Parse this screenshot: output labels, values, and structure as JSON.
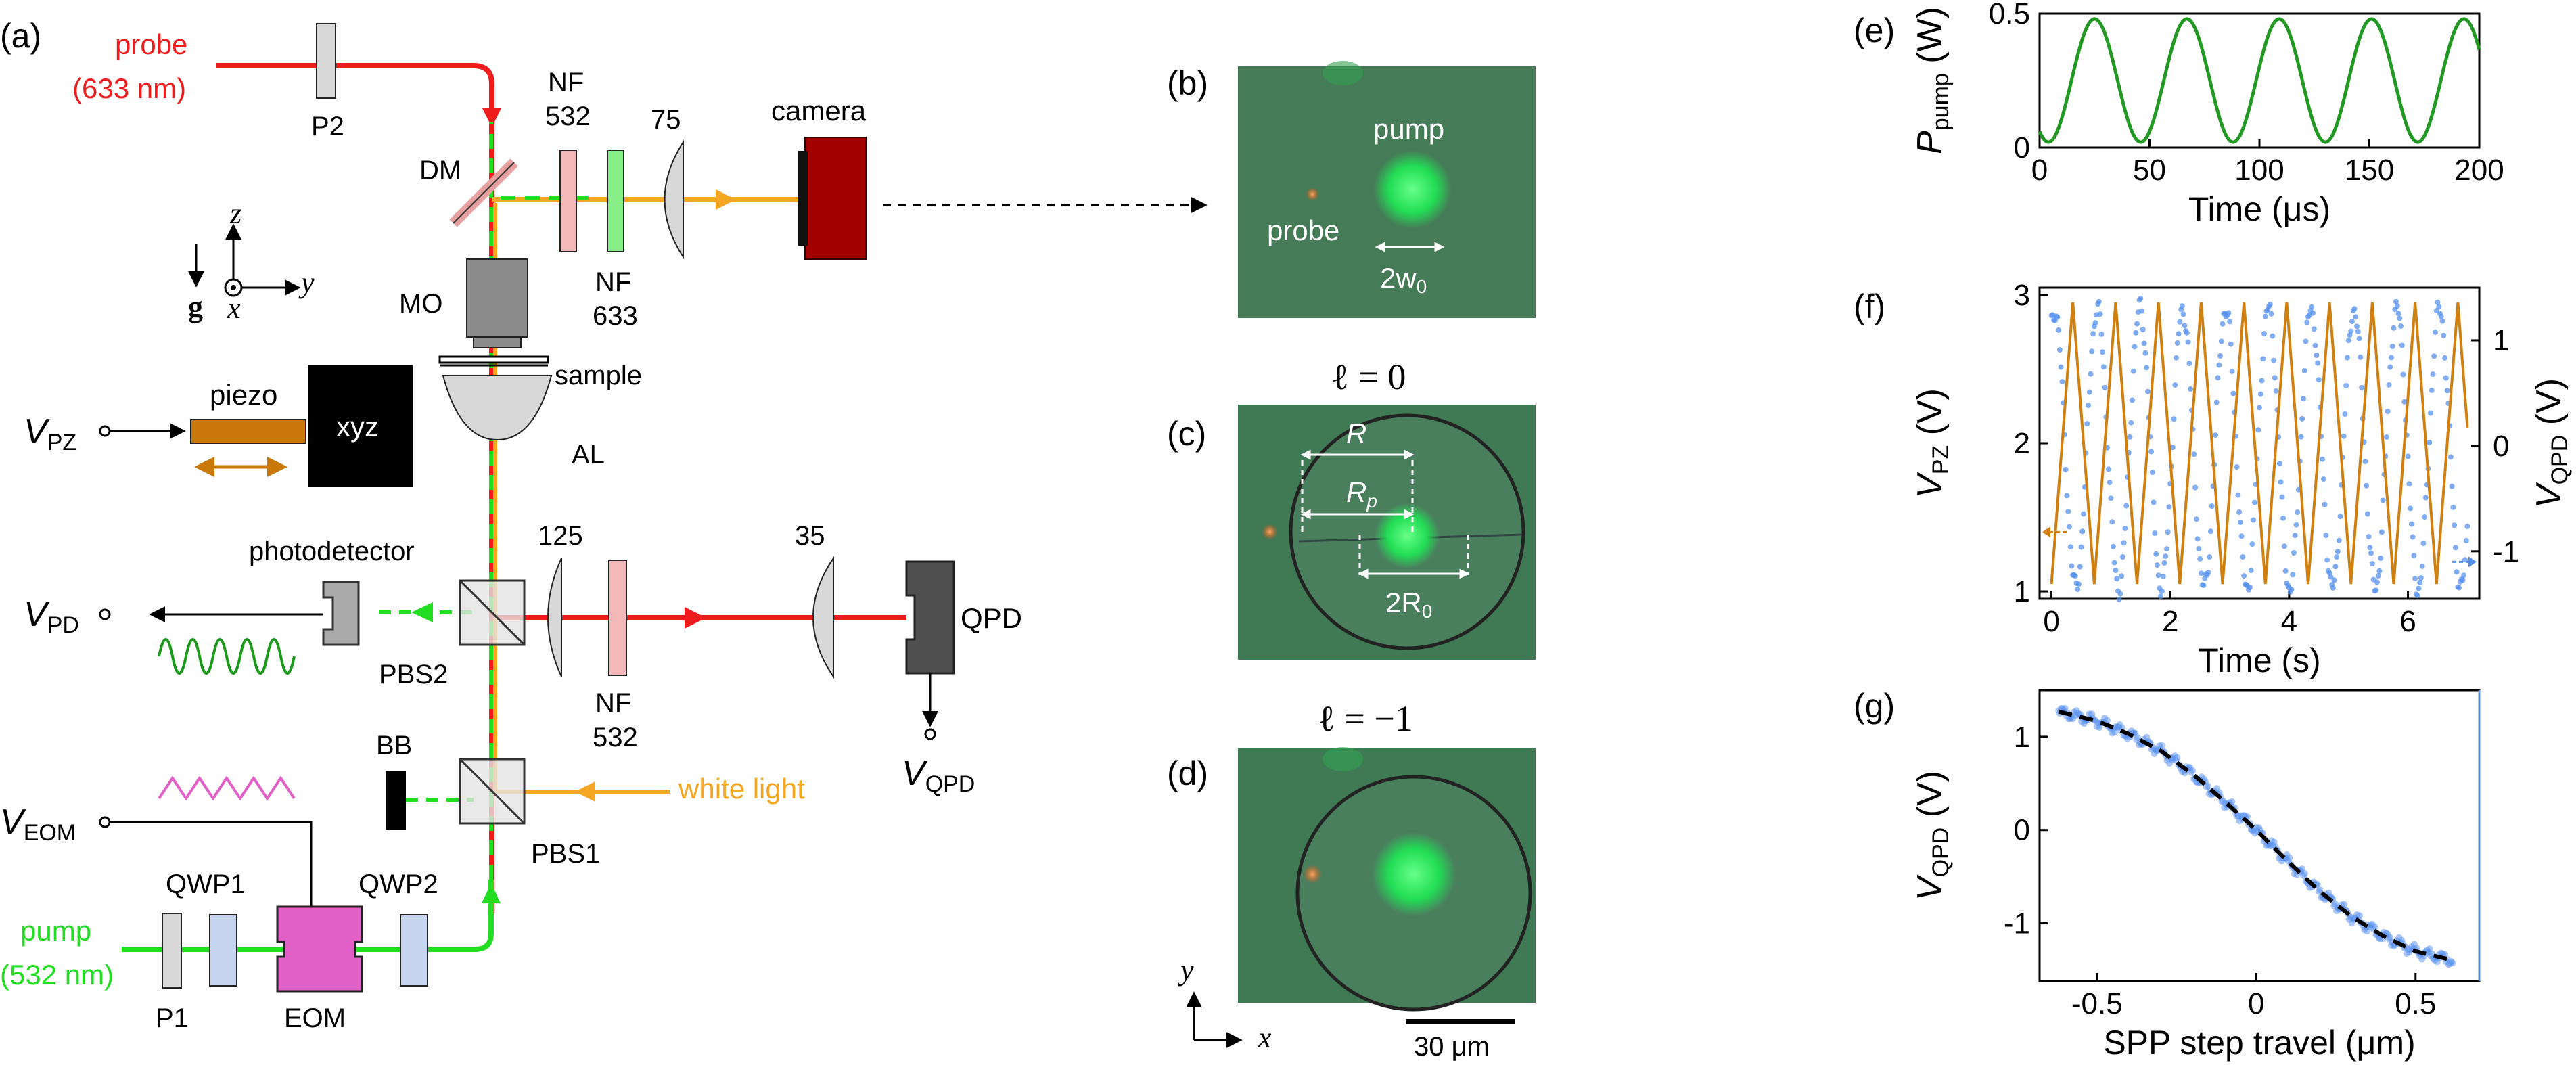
{
  "colors": {
    "probe_beam": "#ee1c1c",
    "pump_beam": "#22dd22",
    "white_light_beam": "#f5a623",
    "piezo": "#c8790a",
    "eom": "#e060c8",
    "eom_signal": "#e060c8",
    "pd_signal": "#1c9a1c",
    "camera": "#a30000",
    "notch_532": "#f5b8b8",
    "notch_633": "#88ee88",
    "waveplate": "#c6d4f0",
    "optic_gray": "#d8d8d8",
    "objective": "#8c8c8c",
    "qpd": "#505050",
    "micrograph_bg": "#3f7a55",
    "series_ppump": "#229922",
    "series_vpz": "#d08010",
    "series_vqpd": "#5590ee",
    "fit_line": "#000000"
  },
  "panel_labels": {
    "a": "(a)",
    "b": "(b)",
    "c": "(c)",
    "d": "(d)",
    "e": "(e)",
    "f": "(f)",
    "g": "(g)"
  },
  "setup": {
    "probe_label": "probe",
    "probe_wavelength": "(633 nm)",
    "pump_label": "pump",
    "pump_wavelength": "(532 nm)",
    "p2": "P2",
    "p1": "P1",
    "dm": "DM",
    "nf_top": "NF",
    "nf_top_value": "532",
    "nf_mid": "NF",
    "nf_mid_value": "633",
    "lens_75": "75",
    "camera": "camera",
    "mo": "MO",
    "sample": "sample",
    "al": "AL",
    "piezo": "piezo",
    "xyz": "xyz",
    "v_pz": "V",
    "v_pz_sub": "PZ",
    "photodetector": "photodetector",
    "v_pd": "V",
    "v_pd_sub": "PD",
    "pbs2": "PBS2",
    "pbs1": "PBS1",
    "lens_125": "125",
    "lens_35": "35",
    "nf_low": "NF",
    "nf_low_value": "532",
    "qpd": "QPD",
    "v_qpd": "V",
    "v_qpd_sub": "QPD",
    "bb": "BB",
    "white_light": "white light",
    "v_eom": "V",
    "v_eom_sub": "EOM",
    "qwp1": "QWP1",
    "qwp2": "QWP2",
    "eom": "EOM",
    "axis_z": "z",
    "axis_y": "y",
    "axis_x": "x",
    "gravity": "g"
  },
  "micrographs": {
    "b_pump": "pump",
    "b_probe": "probe",
    "b_width": "2w",
    "b_width_sub": "0",
    "c_title": "ℓ = 0",
    "c_R": "R",
    "c_Rp": "R",
    "c_Rp_sub": "p",
    "c_2R0": "2R",
    "c_2R0_sub": "0",
    "d_title": "ℓ = −1",
    "axis_y": "y",
    "axis_x": "x",
    "scale_bar": "30 μm"
  },
  "chart_data": [
    {
      "panel": "e",
      "type": "line",
      "xlabel": "Time (μs)",
      "ylabel": "P",
      "ylabel_sub": "pump",
      "ylabel_unit": " (W)",
      "xlim": [
        0,
        200
      ],
      "ylim": [
        0,
        0.5
      ],
      "xticks": [
        0,
        50,
        100,
        150,
        200
      ],
      "yticks": [
        0,
        0.5
      ],
      "series": [
        {
          "period_us": 42,
          "min": 0.02,
          "max": 0.48,
          "first_peak_us": 25,
          "color": "#229922"
        }
      ]
    },
    {
      "panel": "f",
      "type": "line",
      "xlabel": "Time (s)",
      "ylabel": "V",
      "ylabel_sub": "PZ",
      "ylabel_unit": " (V)",
      "y2label": "V",
      "y2label_sub": "QPD",
      "y2label_unit": " (V)",
      "xlim": [
        -0.2,
        7.2
      ],
      "ylim": [
        0.95,
        3.05
      ],
      "y2lim": [
        -1.45,
        1.5
      ],
      "xticks": [
        0,
        2,
        4,
        6
      ],
      "yticks": [
        1,
        2,
        3
      ],
      "y2ticks": [
        -1,
        0,
        1
      ],
      "series": [
        {
          "name": "V_PZ",
          "shape": "triangle",
          "period_s": 0.72,
          "min": 1.05,
          "max": 2.95,
          "axis": "left",
          "color": "#d08010"
        },
        {
          "name": "V_QPD",
          "shape": "scatter-sine",
          "period_s": 0.72,
          "min": -1.35,
          "max": 1.3,
          "axis": "right",
          "color": "#5590ee"
        }
      ]
    },
    {
      "panel": "g",
      "type": "scatter",
      "xlabel": "SPP step travel (μm)",
      "ylabel": "V",
      "ylabel_sub": "QPD",
      "ylabel_unit": " (V)",
      "xlim": [
        -0.68,
        0.7
      ],
      "ylim": [
        -1.62,
        1.5
      ],
      "xticks": [
        -0.5,
        0,
        0.5
      ],
      "xtick_labels": [
        "-0.5",
        "0",
        "0.5"
      ],
      "yticks": [
        -1,
        0,
        1
      ],
      "ytick_labels": [
        "-1",
        "0",
        "1"
      ],
      "fit": {
        "x": [
          -0.62,
          -0.5,
          -0.4,
          -0.3,
          -0.2,
          -0.1,
          0,
          0.1,
          0.2,
          0.3,
          0.4,
          0.5,
          0.62
        ],
        "y": [
          1.27,
          1.17,
          1.03,
          0.85,
          0.6,
          0.31,
          0.0,
          -0.34,
          -0.66,
          -0.93,
          -1.14,
          -1.3,
          -1.4
        ]
      }
    }
  ]
}
